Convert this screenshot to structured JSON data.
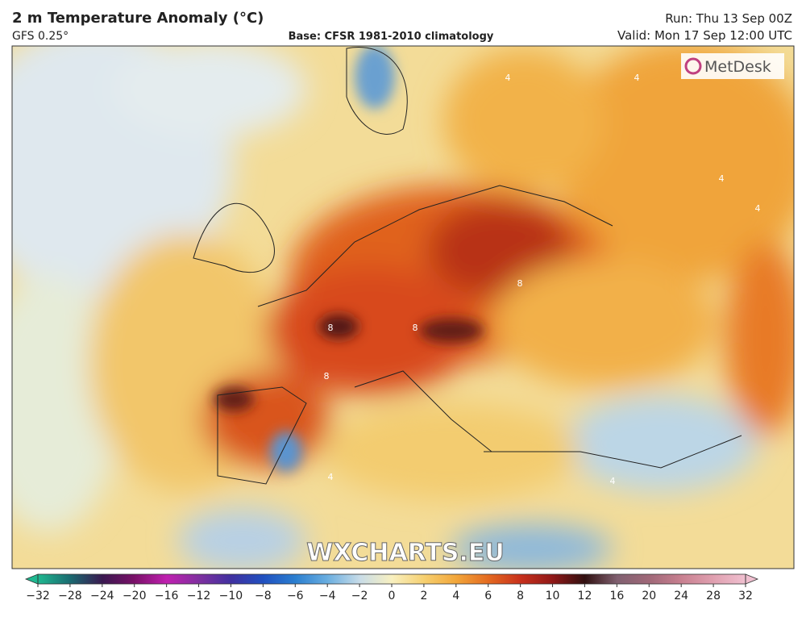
{
  "header": {
    "title": "2 m Temperature Anomaly (°C)",
    "model": "GFS 0.25°",
    "base": "Base: CFSR 1981-2010 climatology",
    "run": "Run: Thu 13 Sep 00Z",
    "valid": "Valid: Mon 17 Sep 12:00 UTC"
  },
  "map": {
    "logo": "MetDesk",
    "watermark": "WXCHARTS.EU",
    "contour_labels": [
      "4",
      "4",
      "4",
      "4",
      "8",
      "8",
      "8",
      "8",
      "4",
      "4"
    ]
  },
  "colorbar": {
    "ticks": [
      {
        "value": -32,
        "label": "−32"
      },
      {
        "value": -28,
        "label": "−28"
      },
      {
        "value": -24,
        "label": "−24"
      },
      {
        "value": -20,
        "label": "−20"
      },
      {
        "value": -16,
        "label": "−16"
      },
      {
        "value": -12,
        "label": "−12"
      },
      {
        "value": -10,
        "label": "−10"
      },
      {
        "value": -8,
        "label": "−8"
      },
      {
        "value": -6,
        "label": "−6"
      },
      {
        "value": -4,
        "label": "−4"
      },
      {
        "value": -2,
        "label": "−2"
      },
      0,
      2,
      4,
      6,
      8,
      10,
      12,
      16,
      20,
      24,
      28,
      32
    ],
    "colors": [
      "#1fb890",
      "#1a6a70",
      "#3a1850",
      "#7a1068",
      "#c020b0",
      "#8030a0",
      "#4030a0",
      "#2050c0",
      "#2b7fd0",
      "#6aaee0",
      "#c8dce8",
      "#f8f0c0",
      "#f6d070",
      "#f2a63a",
      "#e46a20",
      "#c8301c",
      "#901818",
      "#301010",
      "#806070",
      "#a06878",
      "#c88090",
      "#e0a0b0",
      "#f0c0d0"
    ]
  }
}
